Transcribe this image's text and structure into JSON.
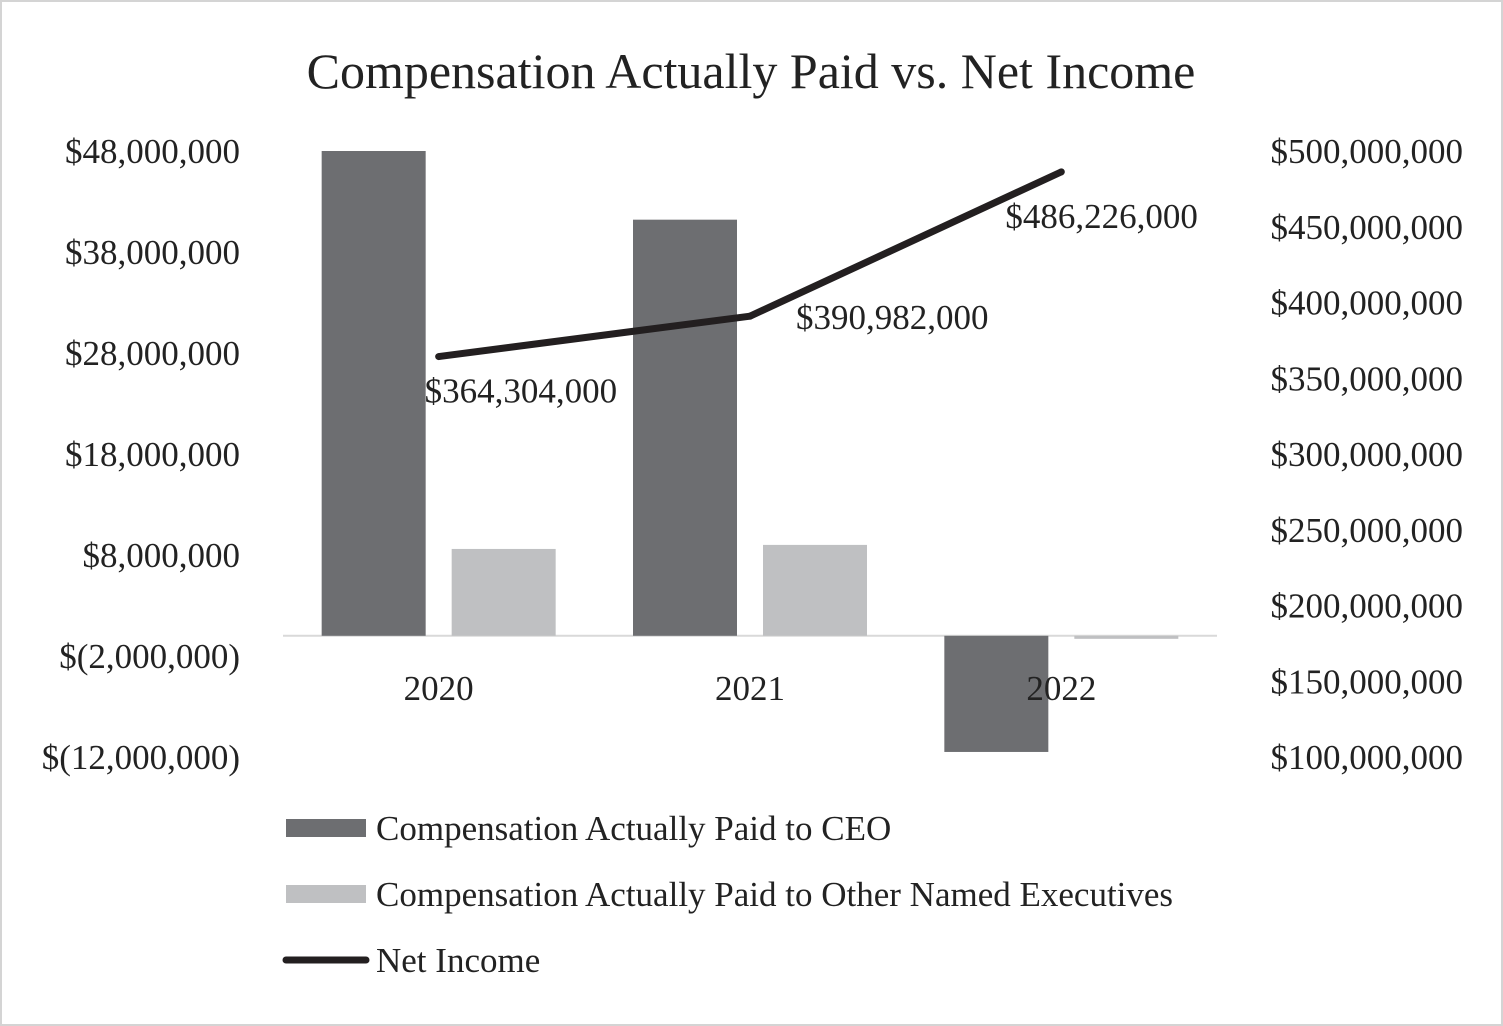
{
  "chart_data": {
    "type": "bar",
    "title": "Compensation Actually Paid vs. Net Income",
    "categories": [
      "2020",
      "2021",
      "2022"
    ],
    "series": [
      {
        "name": "Compensation Actually Paid to CEO",
        "type": "bar",
        "axis": "left",
        "values": [
          48000000,
          41200000,
          -11500000
        ],
        "color": "#6d6e71"
      },
      {
        "name": "Compensation Actually Paid to Other Named Executives",
        "type": "bar",
        "axis": "left",
        "values": [
          8600000,
          9000000,
          -300000
        ],
        "color": "#bfc0c2"
      },
      {
        "name": "Net Income",
        "type": "line",
        "axis": "right",
        "values": [
          364304000,
          390982000,
          486226000
        ],
        "labels": [
          "$364,304,000",
          "$390,982,000",
          "$486,226,000"
        ],
        "color": "#231f20"
      }
    ],
    "y_left": {
      "range": [
        -12000000,
        48000000
      ],
      "ticks": [
        48000000,
        38000000,
        28000000,
        18000000,
        8000000,
        -2000000,
        -12000000
      ],
      "tick_labels": [
        "$48,000,000",
        "$38,000,000",
        "$28,000,000",
        "$18,000,000",
        "$8,000,000",
        "$(2,000,000)",
        "$(12,000,000)"
      ]
    },
    "y_right": {
      "range": [
        100000000,
        500000000
      ],
      "ticks": [
        500000000,
        450000000,
        400000000,
        350000000,
        300000000,
        250000000,
        200000000,
        150000000,
        100000000
      ],
      "tick_labels": [
        "$500,000,000",
        "$450,000,000",
        "$400,000,000",
        "$350,000,000",
        "$300,000,000",
        "$250,000,000",
        "$200,000,000",
        "$150,000,000",
        "$100,000,000"
      ]
    },
    "baseline_value": 0,
    "legend_position": "bottom-left"
  }
}
